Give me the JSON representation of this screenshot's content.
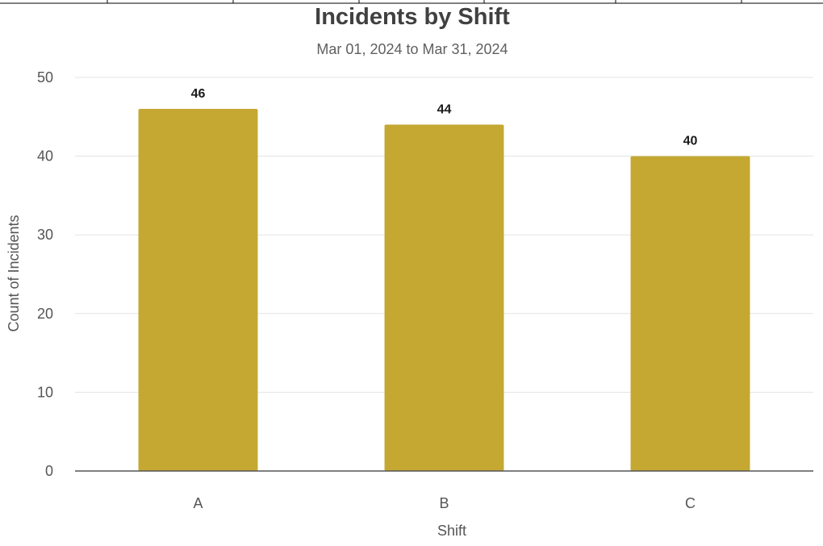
{
  "chart_data": {
    "type": "bar",
    "title": "Incidents by Shift",
    "subtitle": "Mar 01, 2024 to Mar 31, 2024",
    "xlabel": "Shift",
    "ylabel": "Count of Incidents",
    "categories": [
      "A",
      "B",
      "C"
    ],
    "values": [
      46,
      44,
      40
    ],
    "data_labels": [
      "46",
      "44",
      "40"
    ],
    "ylim": [
      0,
      50
    ],
    "yticks": [
      0,
      10,
      20,
      30,
      40,
      50
    ],
    "ytick_labels": [
      "0",
      "10",
      "20",
      "30",
      "40",
      "50"
    ],
    "grid": true,
    "legend": "none",
    "colors": {
      "bar": "#c4a832",
      "title": "#404040",
      "subtitle": "#606060",
      "axis_text": "#555555",
      "grid": "#e3e3e3",
      "baseline": "#555555",
      "data_label": "#1a1a1a"
    }
  }
}
